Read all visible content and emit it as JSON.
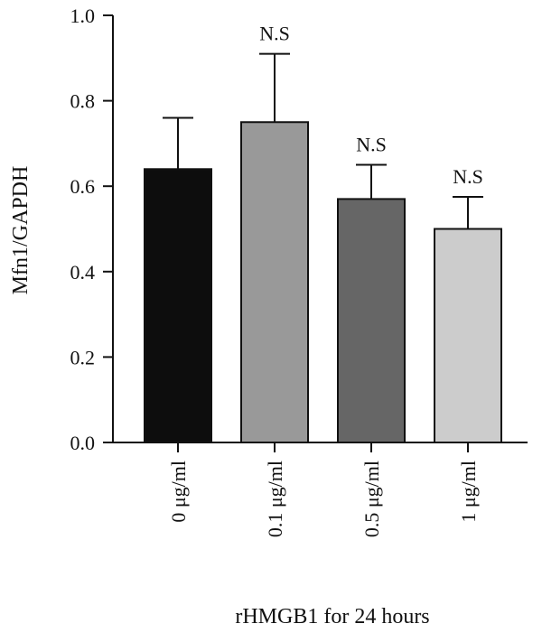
{
  "chart_data": {
    "type": "bar",
    "xlabel": "rHMGB1 for 24 hours",
    "ylabel": "Mfn1/GAPDH",
    "ylim": [
      0,
      1.0
    ],
    "yticks": [
      "0.0",
      "0.2",
      "0.4",
      "0.6",
      "0.8",
      "1.0"
    ],
    "categories": [
      "0 μg/ml",
      "0.1 μg/ml",
      "0.5 μg/ml",
      "1 μg/ml"
    ],
    "values": [
      0.64,
      0.75,
      0.57,
      0.5
    ],
    "errors": [
      0.12,
      0.16,
      0.08,
      0.075
    ],
    "annotations": [
      "",
      "N.S",
      "N.S",
      "N.S"
    ],
    "bar_colors": [
      "#0d0d0d",
      "#999999",
      "#666666",
      "#cccccc"
    ]
  }
}
